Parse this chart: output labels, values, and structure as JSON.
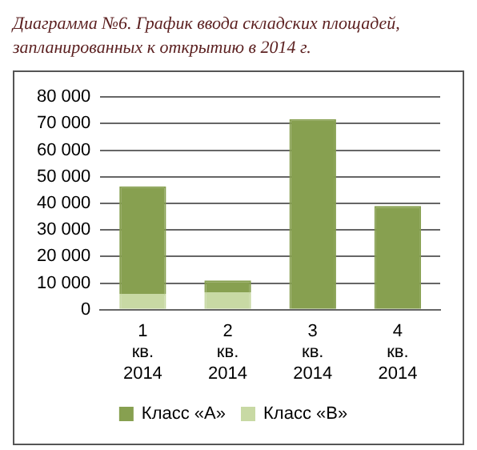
{
  "chart_data": {
    "type": "bar",
    "title": "Диаграмма №6. График ввода складских площадей, запланированных к открытию в 2014 г.",
    "categories": [
      "1 кв. 2014",
      "2 кв. 2014",
      "3 кв. 2014",
      "4 кв. 2014"
    ],
    "stacked": true,
    "series": [
      {
        "name": "Класс «В»",
        "color": "#c8d9a4",
        "values": [
          6000,
          6600,
          null,
          null
        ]
      },
      {
        "name": "Класс «А»",
        "color": "#87a050",
        "values": [
          40400,
          4400,
          71700,
          39000
        ]
      }
    ],
    "ylim": [
      0,
      80000
    ],
    "yticks": [
      {
        "value": 0,
        "label": "0"
      },
      {
        "value": 10000,
        "label": "10 000"
      },
      {
        "value": 20000,
        "label": "20 000"
      },
      {
        "value": 30000,
        "label": "30 000"
      },
      {
        "value": 40000,
        "label": "40 000"
      },
      {
        "value": 50000,
        "label": "50 000"
      },
      {
        "value": 60000,
        "label": "60 000"
      },
      {
        "value": 70000,
        "label": "70 000"
      },
      {
        "value": 80000,
        "label": "80 000"
      }
    ],
    "grid": "y",
    "legend": "bottom"
  }
}
